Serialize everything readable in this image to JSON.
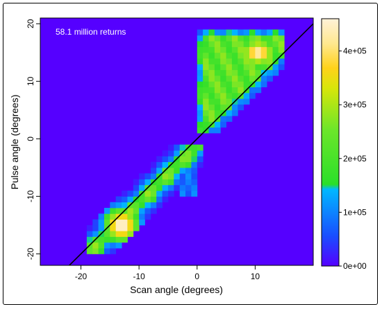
{
  "chart_data": {
    "type": "heatmap",
    "title": "",
    "xlabel": "Scan angle (degrees)",
    "ylabel": "Pulse angle (degrees)",
    "annotation": "58.1 million returns",
    "xlim": [
      -27,
      20
    ],
    "ylim": [
      -22,
      21
    ],
    "x_ticks": [
      -20,
      -10,
      0,
      10
    ],
    "y_ticks": [
      -20,
      -10,
      0,
      10,
      20
    ],
    "grid": false,
    "background_color": "#5500ff",
    "reference_line": {
      "x": [
        -22,
        20
      ],
      "y": [
        -22,
        20
      ],
      "color": "#000000"
    },
    "colorbar": {
      "min": 0,
      "max": 460000,
      "ticks": [
        0,
        100000,
        200000,
        300000,
        400000
      ],
      "tick_labels": [
        "0e+00",
        "1e+05",
        "2e+05",
        "3e+05",
        "4e+05"
      ],
      "colors": [
        "#5500ff",
        "#1a4dff",
        "#00b8ff",
        "#2adf2a",
        "#6ce62a",
        "#d8e60a",
        "#ffd21a",
        "#ffe890",
        "#fff2d8"
      ],
      "stops": [
        0,
        0.12,
        0.31,
        0.33,
        0.55,
        0.72,
        0.8,
        0.9,
        1
      ]
    },
    "regions": [
      {
        "name": "upper-cluster",
        "x_range": [
          0,
          15
        ],
        "y_range": [
          1,
          19
        ],
        "peak_count": 430000,
        "peak_location": [
          10,
          15
        ]
      },
      {
        "name": "lower-cluster",
        "x_range": [
          -19,
          0
        ],
        "y_range": [
          -20,
          -1
        ],
        "peak_count": 460000,
        "peak_location": [
          -13,
          -15
        ]
      }
    ]
  }
}
